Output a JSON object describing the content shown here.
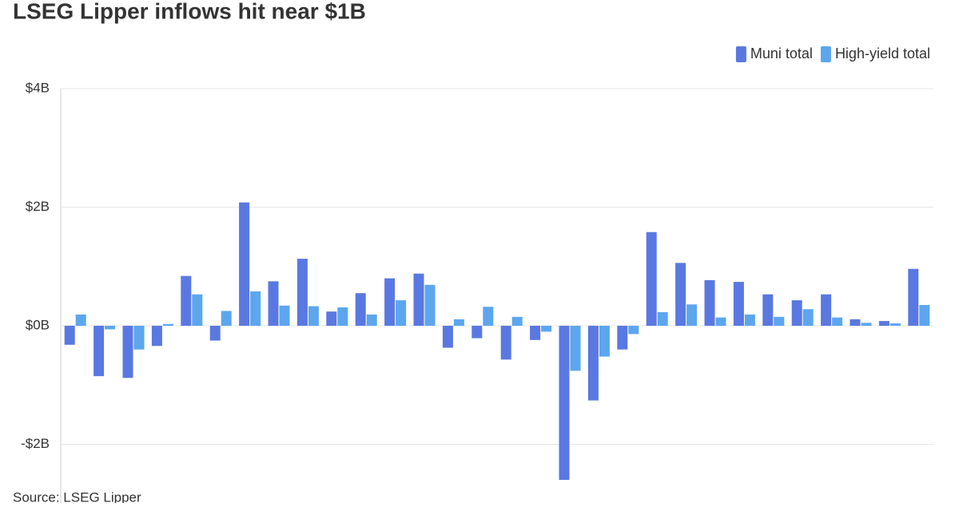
{
  "chart_data": {
    "type": "bar",
    "title": "LSEG Lipper inflows hit near $1B",
    "source": "Source: LSEG Lipper",
    "categories": [
      null,
      null,
      null,
      null,
      null,
      null,
      null,
      null,
      null,
      null,
      null,
      null,
      null,
      null,
      null,
      null,
      null,
      null,
      null,
      null,
      null,
      null,
      null,
      null,
      null,
      null,
      null,
      null,
      null,
      null
    ],
    "series": [
      {
        "name": "Muni total",
        "color": "#5a78e2",
        "values": [
          -0.32,
          -0.85,
          -0.88,
          -0.34,
          0.84,
          -0.25,
          2.08,
          0.75,
          1.13,
          0.24,
          0.55,
          0.8,
          0.88,
          -0.37,
          -0.21,
          -0.57,
          -0.24,
          -2.6,
          -1.26,
          -0.4,
          1.58,
          1.06,
          0.77,
          0.74,
          0.53,
          0.43,
          0.53,
          0.11,
          0.08,
          0.96
        ]
      },
      {
        "name": "High-yield total",
        "color": "#5ca6ee",
        "values": [
          0.19,
          -0.06,
          -0.4,
          0.03,
          0.53,
          0.25,
          0.58,
          0.34,
          0.33,
          0.31,
          0.19,
          0.43,
          0.69,
          0.11,
          0.32,
          0.15,
          -0.1,
          -0.76,
          -0.52,
          -0.14,
          0.23,
          0.36,
          0.14,
          0.19,
          0.15,
          0.28,
          0.14,
          0.05,
          0.04,
          0.35
        ]
      }
    ],
    "ylim": [
      -2.7,
      4
    ],
    "yticks": [
      {
        "value": -2,
        "label": "-$2B"
      },
      {
        "value": 0,
        "label": "$0B"
      },
      {
        "value": 2,
        "label": "$2B"
      },
      {
        "value": 4,
        "label": "$4B"
      }
    ],
    "grid": true,
    "legend": "top-right"
  }
}
